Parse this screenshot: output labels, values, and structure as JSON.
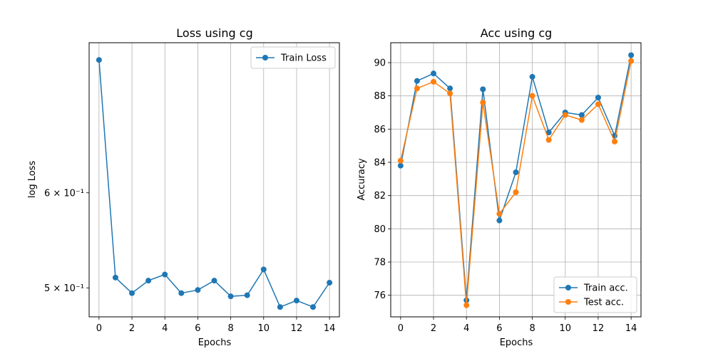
{
  "chart_data": [
    {
      "type": "line",
      "title": "Loss using cg",
      "xlabel": "Epochs",
      "ylabel": "log Loss",
      "yscale": "log",
      "xlim": [
        -0.6,
        14.6
      ],
      "ylim": [
        0.473,
        0.8
      ],
      "xticks": [
        0,
        2,
        4,
        6,
        8,
        10,
        12,
        14
      ],
      "yticks": [
        {
          "value": 0.6,
          "label": "6 × 10⁻¹"
        },
        {
          "value": 0.5,
          "label": "5 × 10⁻¹"
        }
      ],
      "grid": "x",
      "legend_position": "upper right",
      "x": [
        0,
        1,
        2,
        3,
        4,
        5,
        6,
        7,
        8,
        9,
        10,
        11,
        12,
        13,
        14
      ],
      "series": [
        {
          "name": "Train Loss",
          "color": "#1f77b4",
          "values": [
            0.774,
            0.51,
            0.495,
            0.507,
            0.513,
            0.495,
            0.498,
            0.507,
            0.492,
            0.493,
            0.518,
            0.482,
            0.488,
            0.482,
            0.505
          ]
        }
      ]
    },
    {
      "type": "line",
      "title": "Acc using cg",
      "xlabel": "Epochs",
      "ylabel": "Accuracy",
      "yscale": "linear",
      "xlim": [
        -0.6,
        14.6
      ],
      "ylim": [
        74.7,
        91.2
      ],
      "xticks": [
        0,
        2,
        4,
        6,
        8,
        10,
        12,
        14
      ],
      "yticks": [
        {
          "value": 76,
          "label": "76"
        },
        {
          "value": 78,
          "label": "78"
        },
        {
          "value": 80,
          "label": "80"
        },
        {
          "value": 82,
          "label": "82"
        },
        {
          "value": 84,
          "label": "84"
        },
        {
          "value": 86,
          "label": "86"
        },
        {
          "value": 88,
          "label": "88"
        },
        {
          "value": 90,
          "label": "90"
        }
      ],
      "grid": "both",
      "legend_position": "lower right",
      "x": [
        0,
        1,
        2,
        3,
        4,
        5,
        6,
        7,
        8,
        9,
        10,
        11,
        12,
        13,
        14
      ],
      "series": [
        {
          "name": "Train acc.",
          "color": "#1f77b4",
          "values": [
            83.8,
            88.9,
            89.35,
            88.45,
            75.7,
            88.4,
            80.5,
            83.4,
            89.15,
            85.8,
            87.0,
            86.85,
            87.9,
            85.6,
            90.45
          ]
        },
        {
          "name": "Test acc.",
          "color": "#ff7f0e",
          "values": [
            84.1,
            88.45,
            88.85,
            88.15,
            75.4,
            87.6,
            80.9,
            82.2,
            88.0,
            85.35,
            86.85,
            86.55,
            87.5,
            85.25,
            90.1
          ]
        }
      ]
    }
  ]
}
